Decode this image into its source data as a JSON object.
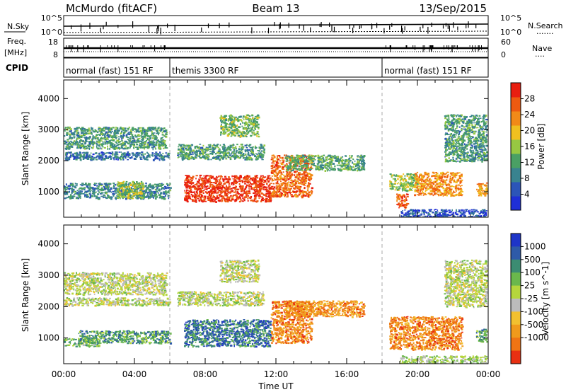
{
  "header": {
    "title_left": "McMurdo (fitACF)",
    "title_center": "Beam 13",
    "title_right": "13/Sep/2015"
  },
  "status_panel": {
    "left_label_top": "N.Sky",
    "left_ticks_top": [
      "10^5",
      "10^0"
    ],
    "right_label_top": "N.Search",
    "right_ticks_top": [
      "10^5",
      "10^0"
    ],
    "right_dotted_top": ".......",
    "freq_label": "Freq.",
    "freq_unit": "[MHz]",
    "freq_ticks": [
      "18",
      "8"
    ],
    "nave_label": "Nave",
    "nave_ticks": [
      "60",
      "0"
    ],
    "nave_dotted": "....",
    "cpid_label": "CPID",
    "modes": [
      {
        "label": "normal (fast) 151 RF",
        "start_hour": 0,
        "end_hour": 6
      },
      {
        "label": "themis 3300 RF",
        "start_hour": 6,
        "end_hour": 18
      },
      {
        "label": "normal (fast) 151 RF",
        "start_hour": 18,
        "end_hour": 24
      }
    ]
  },
  "chart_data": [
    {
      "type": "heatmap",
      "title": "",
      "xlabel": "",
      "ylabel": "Slant Range [km]",
      "xlim": [
        0,
        24
      ],
      "ylim": [
        180,
        4600
      ],
      "yticks": [
        1000,
        2000,
        3000,
        4000
      ],
      "colorbar": {
        "label": "Power [dB]",
        "ticks": [
          4,
          8,
          12,
          16,
          20,
          24,
          28
        ],
        "range": [
          0,
          32
        ],
        "colors": [
          "#1f2fd6",
          "#2c55b8",
          "#39838f",
          "#4aa064",
          "#97c842",
          "#f0c020",
          "#f28a18",
          "#ee5a10",
          "#e81e10"
        ]
      },
      "blobs": [
        {
          "t0": 0.0,
          "t1": 5.8,
          "r0": 2400,
          "r1": 3100,
          "level": 0.35
        },
        {
          "t0": 0.0,
          "t1": 6.0,
          "r0": 2050,
          "r1": 2300,
          "level": 0.25
        },
        {
          "t0": 0.0,
          "t1": 6.0,
          "r0": 800,
          "r1": 1300,
          "level": 0.3
        },
        {
          "t0": 3.0,
          "t1": 4.5,
          "r0": 800,
          "r1": 1350,
          "level": 0.5
        },
        {
          "t0": 6.4,
          "t1": 11.3,
          "r0": 2050,
          "r1": 2550,
          "level": 0.35
        },
        {
          "t0": 8.8,
          "t1": 11.0,
          "r0": 2800,
          "r1": 3500,
          "level": 0.45
        },
        {
          "t0": 6.8,
          "t1": 11.7,
          "r0": 700,
          "r1": 1550,
          "level": 0.92
        },
        {
          "t0": 11.7,
          "t1": 14.0,
          "r0": 850,
          "r1": 2200,
          "level": 0.8
        },
        {
          "t0": 12.5,
          "t1": 17.0,
          "r0": 1700,
          "r1": 2200,
          "level": 0.4
        },
        {
          "t0": 18.4,
          "t1": 20.0,
          "r0": 1050,
          "r1": 1600,
          "level": 0.5
        },
        {
          "t0": 18.8,
          "t1": 19.4,
          "r0": 500,
          "r1": 950,
          "level": 0.85
        },
        {
          "t0": 19.8,
          "t1": 22.5,
          "r0": 900,
          "r1": 1650,
          "level": 0.72
        },
        {
          "t0": 21.5,
          "t1": 23.9,
          "r0": 2000,
          "r1": 3500,
          "level": 0.35
        },
        {
          "t0": 23.3,
          "t1": 23.9,
          "r0": 900,
          "r1": 1300,
          "level": 0.7
        },
        {
          "t0": 19.0,
          "t1": 23.9,
          "r0": 180,
          "r1": 450,
          "level": 0.15
        }
      ]
    },
    {
      "type": "heatmap",
      "title": "",
      "xlabel": "Time UT",
      "ylabel": "Slant Range [km]",
      "xlim": [
        0,
        24
      ],
      "ylim": [
        180,
        4600
      ],
      "yticks": [
        1000,
        2000,
        3000,
        4000
      ],
      "xticks": [
        "00:00",
        "04:00",
        "08:00",
        "12:00",
        "16:00",
        "20:00",
        "00:00"
      ],
      "colorbar": {
        "label": "Velocity [m s^-1]",
        "ticks": [
          "1000",
          "500",
          "100",
          "25",
          "-25",
          "-100",
          "-500",
          "-1000"
        ],
        "colors": [
          "#1e35c8",
          "#2e5aa8",
          "#3c8c72",
          "#6ab84c",
          "#b5d63c",
          "#bcbcbc",
          "#f2c030",
          "#f09a1c",
          "#ef7414",
          "#e83012"
        ]
      },
      "blobs": [
        {
          "t0": 0.0,
          "t1": 5.8,
          "r0": 2400,
          "r1": 3100,
          "level": 0.5
        },
        {
          "t0": 0.0,
          "t1": 6.0,
          "r0": 2050,
          "r1": 2300,
          "level": 0.5
        },
        {
          "t0": 0.0,
          "t1": 2.0,
          "r0": 750,
          "r1": 1000,
          "level": 0.38
        },
        {
          "t0": 0.8,
          "t1": 6.0,
          "r0": 850,
          "r1": 1250,
          "level": 0.3
        },
        {
          "t0": 6.4,
          "t1": 11.3,
          "r0": 2050,
          "r1": 2500,
          "level": 0.5
        },
        {
          "t0": 8.8,
          "t1": 11.0,
          "r0": 2800,
          "r1": 3500,
          "level": 0.5
        },
        {
          "t0": 6.8,
          "t1": 11.7,
          "r0": 750,
          "r1": 1600,
          "level": 0.2
        },
        {
          "t0": 11.7,
          "t1": 14.0,
          "r0": 850,
          "r1": 2200,
          "level": 0.8
        },
        {
          "t0": 12.5,
          "t1": 17.0,
          "r0": 1700,
          "r1": 2200,
          "level": 0.78
        },
        {
          "t0": 18.4,
          "t1": 22.5,
          "r0": 650,
          "r1": 1700,
          "level": 0.8
        },
        {
          "t0": 21.5,
          "t1": 23.9,
          "r0": 2000,
          "r1": 3500,
          "level": 0.5
        },
        {
          "t0": 23.3,
          "t1": 23.9,
          "r0": 900,
          "r1": 1300,
          "level": 0.3
        },
        {
          "t0": 19.0,
          "t1": 23.9,
          "r0": 180,
          "r1": 450,
          "level": 0.45
        }
      ]
    }
  ]
}
